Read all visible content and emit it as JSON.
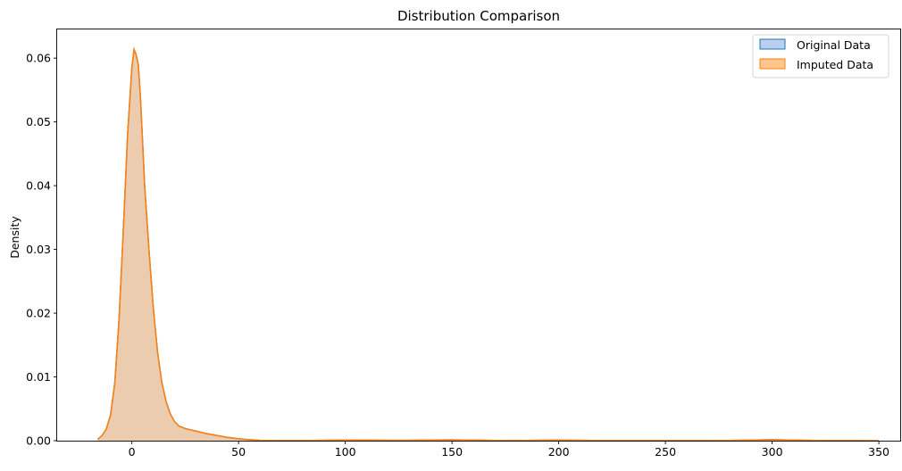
{
  "chart_data": {
    "type": "area",
    "title": "Distribution Comparison",
    "xlabel": "",
    "ylabel": "Density",
    "xlim": [
      -35,
      360
    ],
    "ylim": [
      0,
      0.0645
    ],
    "x_ticks": [
      0,
      50,
      100,
      150,
      200,
      250,
      300,
      350
    ],
    "y_ticks": [
      0.0,
      0.01,
      0.02,
      0.03,
      0.04,
      0.05,
      0.06
    ],
    "y_tick_labels": [
      "0.00",
      "0.01",
      "0.02",
      "0.03",
      "0.04",
      "0.05",
      "0.06"
    ],
    "legend_position": "top-right",
    "grid": false,
    "series": [
      {
        "name": "Original Data",
        "color": "#1f77b4",
        "fill": "#aec7e8",
        "x": [
          -16,
          -14,
          -12,
          -10,
          -8,
          -6,
          -4,
          -2,
          0,
          1,
          2,
          3,
          4,
          5,
          6,
          8,
          10,
          12,
          14,
          16,
          18,
          20,
          22,
          25,
          30,
          35,
          40,
          45,
          50,
          55,
          60,
          70,
          80,
          90,
          100,
          110,
          120,
          130,
          140,
          150,
          160,
          170,
          180,
          190,
          200,
          210,
          220,
          230,
          240,
          250,
          260,
          270,
          280,
          290,
          300,
          310,
          320,
          330,
          340,
          350
        ],
        "y": [
          0.0002,
          0.0008,
          0.0018,
          0.004,
          0.009,
          0.019,
          0.033,
          0.048,
          0.0585,
          0.0612,
          0.0605,
          0.059,
          0.054,
          0.047,
          0.04,
          0.03,
          0.021,
          0.014,
          0.0092,
          0.0062,
          0.0042,
          0.003,
          0.0023,
          0.0019,
          0.0015,
          0.0011,
          0.0008,
          0.0005,
          0.0003,
          0.00015,
          5e-05,
          2e-05,
          2e-05,
          5e-05,
          0.0001,
          8e-05,
          5e-05,
          6e-05,
          0.0001,
          0.00012,
          9e-05,
          4e-05,
          2e-05,
          5e-05,
          9e-05,
          5e-05,
          2e-05,
          1e-05,
          1e-05,
          2e-05,
          2e-05,
          2e-05,
          4e-05,
          8e-05,
          0.00015,
          9e-05,
          3e-05,
          1e-05,
          1e-05,
          0.0
        ]
      },
      {
        "name": "Imputed Data",
        "color": "#ff7f0e",
        "fill": "#ffbb78",
        "x": [
          -16,
          -14,
          -12,
          -10,
          -8,
          -6,
          -4,
          -2,
          0,
          1,
          2,
          3,
          4,
          5,
          6,
          8,
          10,
          12,
          14,
          16,
          18,
          20,
          22,
          25,
          30,
          35,
          40,
          45,
          50,
          55,
          60,
          70,
          80,
          90,
          100,
          110,
          120,
          130,
          140,
          150,
          160,
          170,
          180,
          190,
          200,
          210,
          220,
          230,
          240,
          250,
          260,
          270,
          280,
          290,
          300,
          310,
          320,
          330,
          340,
          350
        ],
        "y": [
          0.0002,
          0.0008,
          0.0018,
          0.004,
          0.009,
          0.019,
          0.033,
          0.048,
          0.0585,
          0.0614,
          0.0606,
          0.059,
          0.054,
          0.047,
          0.04,
          0.03,
          0.021,
          0.014,
          0.0092,
          0.0062,
          0.0042,
          0.003,
          0.0023,
          0.0019,
          0.0015,
          0.0011,
          0.0008,
          0.0005,
          0.0003,
          0.00015,
          5e-05,
          2e-05,
          2e-05,
          5e-05,
          0.0001,
          8e-05,
          5e-05,
          6e-05,
          0.0001,
          0.00012,
          9e-05,
          4e-05,
          2e-05,
          5e-05,
          9e-05,
          5e-05,
          2e-05,
          1e-05,
          1e-05,
          2e-05,
          2e-05,
          2e-05,
          4e-05,
          8e-05,
          0.00015,
          9e-05,
          3e-05,
          1e-05,
          1e-05,
          0.0
        ]
      }
    ]
  }
}
